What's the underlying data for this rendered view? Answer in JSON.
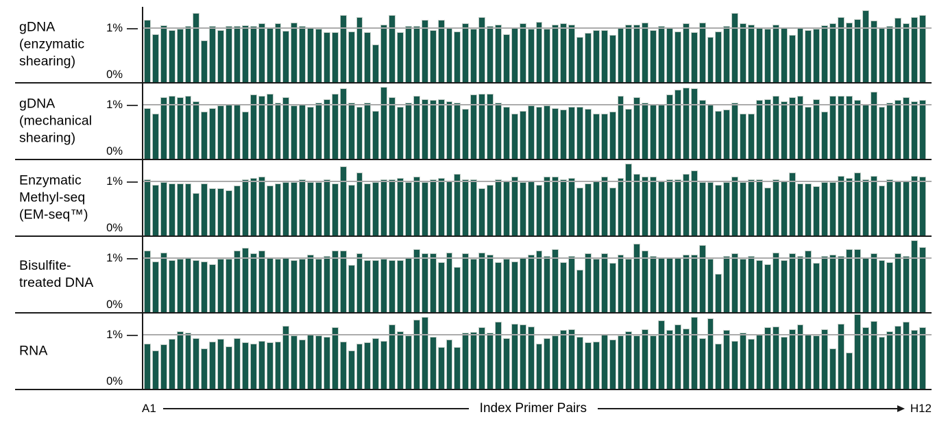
{
  "figure": {
    "background": "#ffffff",
    "bar_color": "#16594c",
    "bar_outline_color": "#c3cdc7",
    "gridline_color": "#ababab",
    "axis_color": "#1a1a1a"
  },
  "y_axis": {
    "tick_top": "1%",
    "tick_bottom": "0%"
  },
  "x_axis": {
    "start_label": "A1",
    "title": "Index Primer Pairs",
    "end_label": "H12"
  },
  "chart_data": {
    "type": "bar",
    "title": "",
    "xlabel": "Index Primer Pairs",
    "x_range_labels": [
      "A1",
      "H12"
    ],
    "ylabel": "",
    "y_unit": "%",
    "ylim": [
      0,
      1.41
    ],
    "ytick_labels": [
      "0%",
      "1%"
    ],
    "gridline_at": 1.0,
    "legend": "none",
    "bars_per_panel": 96,
    "panels": [
      {
        "label": "gDNA (enzymatic shearing)",
        "label_lines": [
          "gDNA",
          "(enzymatic",
          "shearing)"
        ],
        "values": [
          1.17,
          0.9,
          1.06,
          0.98,
          1.0,
          1.05,
          1.3,
          0.78,
          1.05,
          0.98,
          1.05,
          1.05,
          1.07,
          1.05,
          1.1,
          1.03,
          1.1,
          0.96,
          1.12,
          1.05,
          1.03,
          1.0,
          0.94,
          0.94,
          1.25,
          0.95,
          1.22,
          0.94,
          0.7,
          1.08,
          1.25,
          0.94,
          1.05,
          1.05,
          1.17,
          0.97,
          1.17,
          1.03,
          0.95,
          1.1,
          1.0,
          1.22,
          1.05,
          1.08,
          0.9,
          1.03,
          1.1,
          1.0,
          1.13,
          1.0,
          1.08,
          1.1,
          1.08,
          0.85,
          0.92,
          0.98,
          0.97,
          0.88,
          1.02,
          1.08,
          1.08,
          1.12,
          0.97,
          1.05,
          1.02,
          0.95,
          1.1,
          0.93,
          1.12,
          0.85,
          0.95,
          1.05,
          1.3,
          1.1,
          1.08,
          1.02,
          1.0,
          1.08,
          1.02,
          0.88,
          1.03,
          0.97,
          1.0,
          1.07,
          1.1,
          1.22,
          1.12,
          1.18,
          1.35,
          1.15,
          1.02,
          1.05,
          1.2,
          1.1,
          1.22,
          1.25
        ]
      },
      {
        "label": "gDNA (mechanical shearing)",
        "label_lines": [
          "gDNA",
          "(mechanical",
          "shearing)"
        ],
        "values": [
          0.95,
          0.85,
          1.15,
          1.18,
          1.15,
          1.18,
          1.08,
          0.88,
          0.95,
          1.0,
          1.02,
          1.02,
          0.88,
          1.2,
          1.18,
          1.22,
          1.05,
          1.15,
          1.0,
          1.02,
          0.97,
          1.05,
          1.12,
          1.22,
          1.32,
          1.05,
          0.98,
          1.05,
          0.9,
          1.35,
          1.15,
          0.97,
          1.05,
          1.18,
          1.12,
          1.1,
          1.12,
          1.08,
          1.05,
          0.93,
          1.2,
          1.22,
          1.22,
          1.05,
          0.97,
          0.85,
          0.9,
          1.0,
          0.97,
          1.0,
          0.95,
          0.92,
          0.98,
          0.97,
          0.93,
          0.85,
          0.85,
          0.88,
          1.18,
          0.93,
          1.15,
          1.05,
          1.02,
          1.02,
          1.2,
          1.3,
          1.33,
          1.32,
          1.1,
          1.02,
          0.9,
          0.92,
          1.05,
          0.85,
          0.85,
          1.1,
          1.12,
          1.18,
          1.08,
          1.15,
          1.18,
          0.97,
          1.12,
          0.88,
          1.18,
          1.18,
          1.18,
          1.1,
          1.02,
          1.25,
          0.97,
          1.05,
          1.1,
          1.15,
          1.08,
          1.1
        ]
      },
      {
        "label": "Enzymatic Methyl-seq (EM-seq™)",
        "label_lines": [
          "Enzymatic",
          "Methyl-seq",
          "(EM-seq™)"
        ],
        "values": [
          1.05,
          0.95,
          1.0,
          0.98,
          0.97,
          0.97,
          0.8,
          0.97,
          0.88,
          0.88,
          0.85,
          0.93,
          1.05,
          1.08,
          1.1,
          0.93,
          0.97,
          1.0,
          1.0,
          1.05,
          1.0,
          1.0,
          1.05,
          0.97,
          1.3,
          0.95,
          1.18,
          0.97,
          1.0,
          1.05,
          1.05,
          1.08,
          1.0,
          1.1,
          1.0,
          1.05,
          1.08,
          1.02,
          1.15,
          1.05,
          1.05,
          0.88,
          0.95,
          1.05,
          1.02,
          1.1,
          1.0,
          1.02,
          0.95,
          1.1,
          1.1,
          1.05,
          1.08,
          0.9,
          0.97,
          1.03,
          1.1,
          0.9,
          1.08,
          1.35,
          1.15,
          1.1,
          1.1,
          1.02,
          1.05,
          1.05,
          1.15,
          1.22,
          1.0,
          1.0,
          0.95,
          1.0,
          1.1,
          1.0,
          1.05,
          1.05,
          0.9,
          1.05,
          1.02,
          1.18,
          0.97,
          0.98,
          0.92,
          1.0,
          1.0,
          1.12,
          1.08,
          1.18,
          1.05,
          1.12,
          0.93,
          1.05,
          1.03,
          1.02,
          1.12,
          1.1
        ]
      },
      {
        "label": "Bisulfite-treated DNA",
        "label_lines": [
          "Bisulfite-",
          "treated DNA"
        ],
        "values": [
          1.15,
          0.95,
          1.12,
          0.97,
          1.0,
          1.03,
          0.97,
          0.95,
          0.9,
          1.0,
          1.0,
          1.15,
          1.2,
          1.1,
          1.15,
          1.02,
          1.0,
          1.02,
          0.98,
          1.0,
          1.08,
          1.0,
          1.05,
          1.15,
          1.15,
          0.88,
          1.1,
          0.98,
          0.97,
          1.0,
          0.97,
          0.98,
          1.02,
          1.18,
          1.1,
          1.1,
          0.93,
          1.12,
          0.85,
          1.1,
          1.0,
          1.12,
          1.08,
          0.93,
          1.0,
          0.95,
          1.02,
          1.08,
          1.15,
          1.05,
          1.18,
          0.93,
          1.05,
          0.8,
          1.1,
          1.0,
          1.1,
          0.92,
          1.08,
          1.0,
          1.28,
          1.15,
          1.05,
          1.02,
          1.02,
          1.02,
          1.08,
          1.08,
          1.25,
          1.0,
          0.72,
          1.05,
          1.1,
          1.0,
          1.05,
          0.97,
          0.9,
          1.12,
          0.97,
          1.1,
          1.05,
          1.15,
          0.92,
          1.05,
          1.08,
          1.05,
          1.18,
          1.18,
          1.03,
          1.1,
          0.97,
          0.93,
          1.1,
          1.05,
          1.35,
          1.22
        ]
      },
      {
        "label": "RNA",
        "label_lines": [
          "RNA"
        ],
        "values": [
          0.85,
          0.72,
          0.83,
          0.93,
          1.08,
          1.05,
          0.95,
          0.75,
          0.88,
          0.93,
          0.8,
          0.95,
          0.87,
          0.85,
          0.9,
          0.87,
          0.88,
          1.18,
          1.0,
          0.92,
          1.02,
          1.0,
          0.97,
          1.15,
          0.88,
          0.72,
          0.85,
          0.87,
          0.95,
          0.9,
          1.2,
          1.08,
          1.0,
          1.3,
          1.35,
          0.97,
          0.78,
          0.92,
          0.78,
          1.05,
          1.07,
          1.15,
          1.05,
          1.25,
          0.95,
          1.22,
          1.2,
          1.17,
          0.85,
          0.95,
          1.0,
          1.1,
          1.12,
          0.97,
          0.87,
          0.88,
          1.03,
          0.92,
          1.0,
          1.08,
          1.0,
          1.12,
          1.0,
          1.28,
          1.1,
          1.2,
          1.13,
          1.35,
          0.95,
          1.32,
          0.85,
          1.1,
          0.9,
          1.05,
          0.93,
          1.02,
          1.15,
          1.17,
          0.97,
          1.12,
          1.2,
          1.03,
          1.0,
          1.12,
          0.75,
          1.22,
          0.68,
          1.4,
          1.15,
          1.27,
          0.97,
          1.08,
          1.18,
          1.25,
          1.1,
          1.15
        ]
      }
    ]
  }
}
